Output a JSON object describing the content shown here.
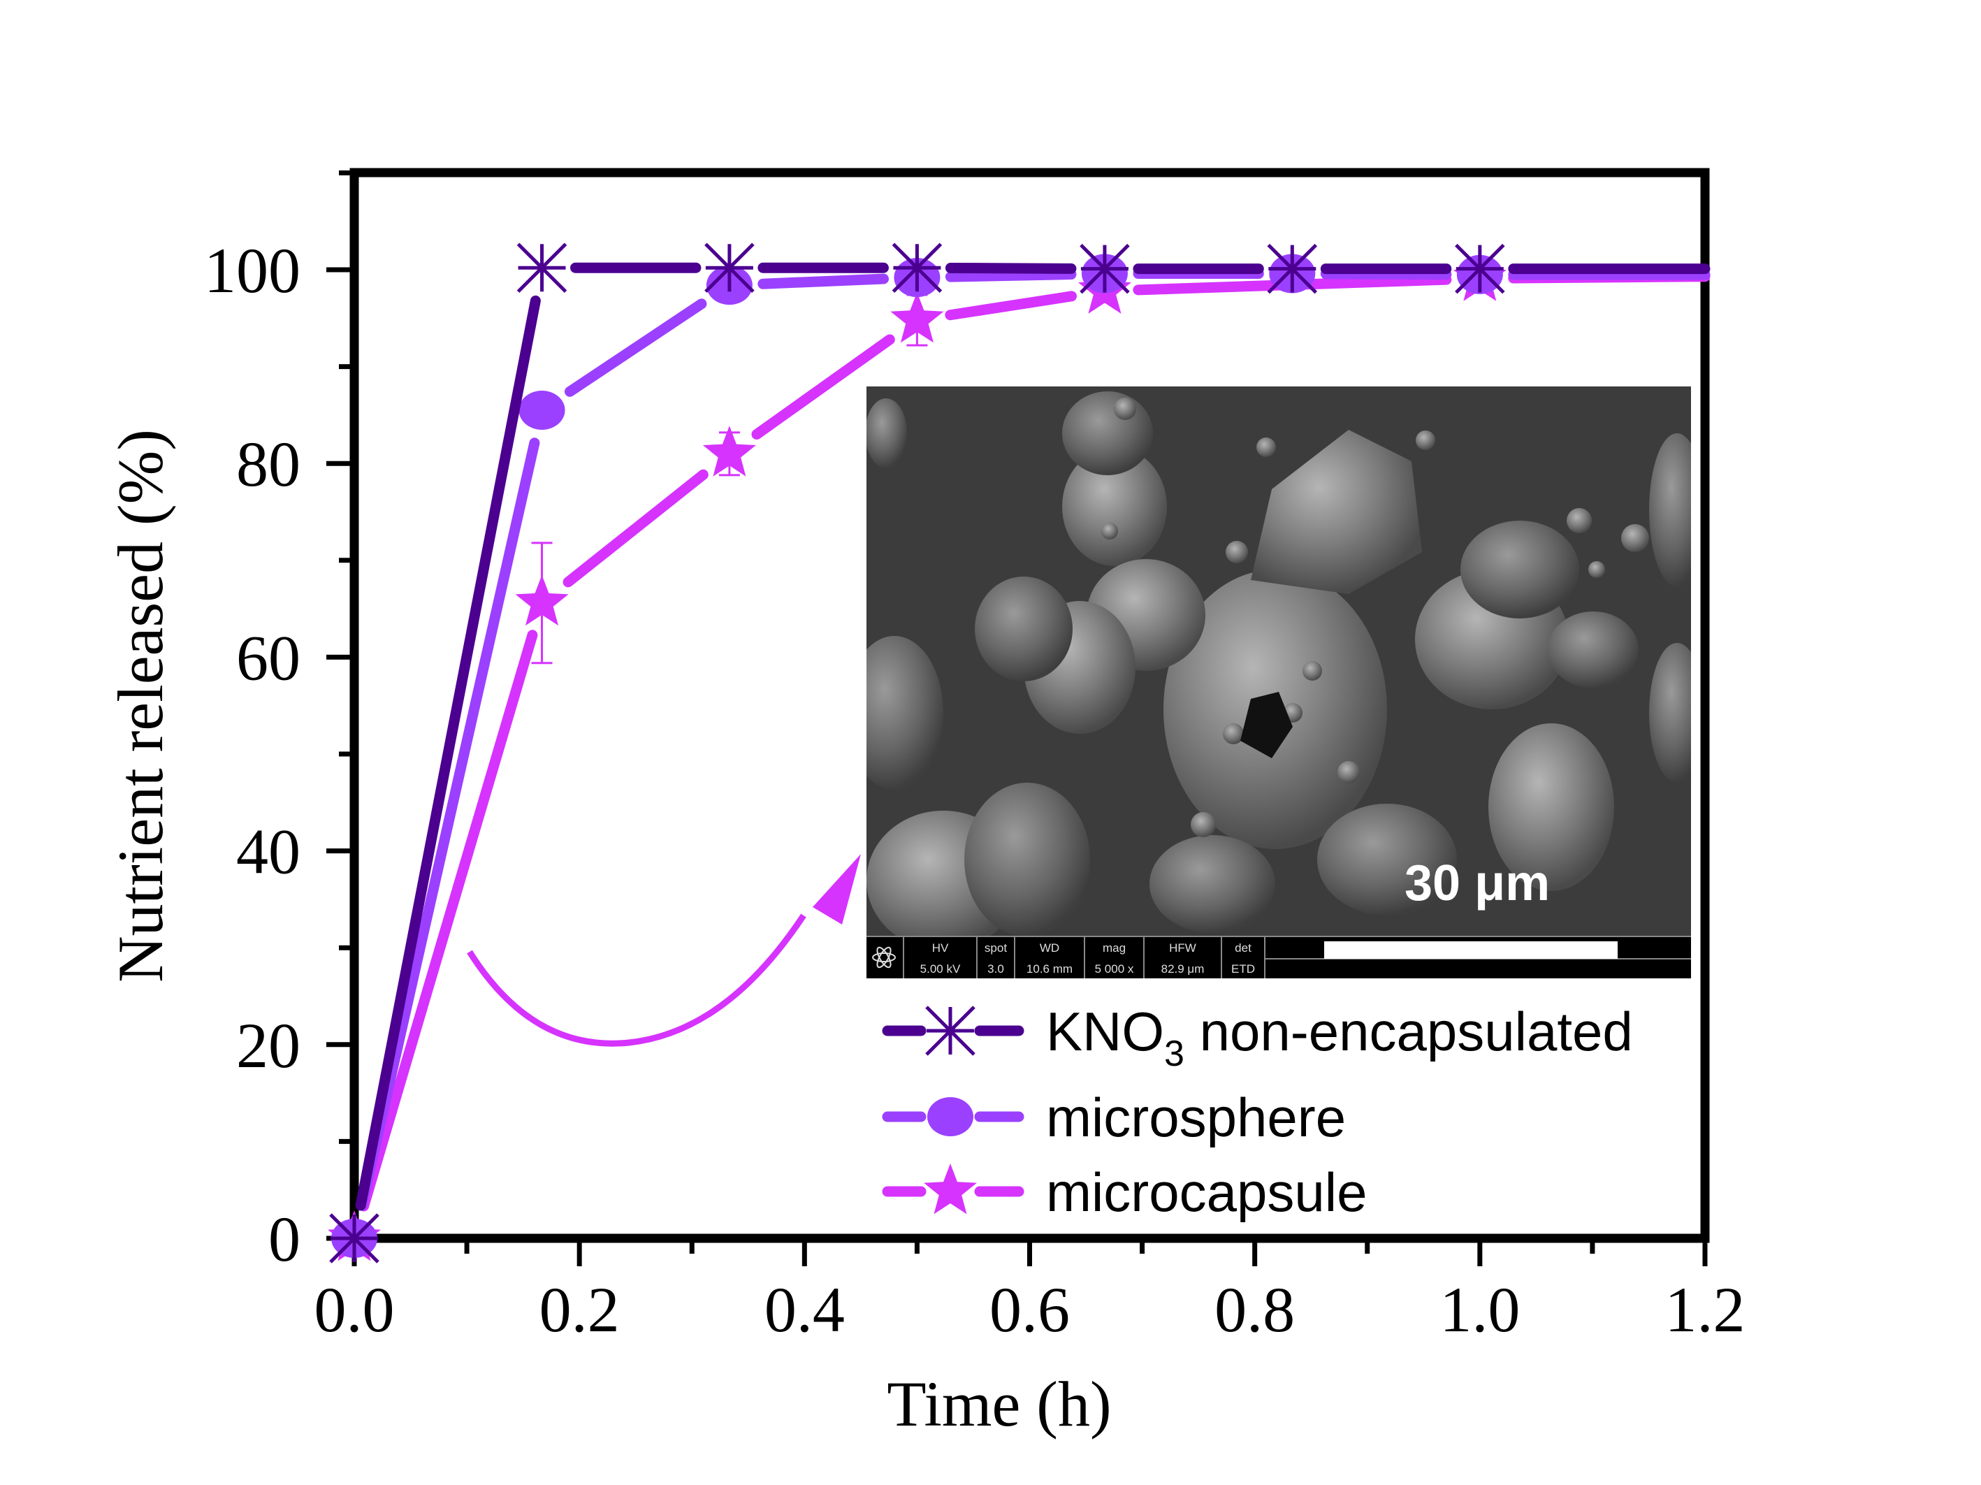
{
  "chart_data": {
    "type": "line",
    "title": "",
    "xlabel": "Time (h)",
    "ylabel": "Nutrient released (%)",
    "xlim": [
      0,
      1.2
    ],
    "ylim": [
      0,
      110
    ],
    "x_ticks": [
      "0.0",
      "0.2",
      "0.4",
      "0.6",
      "0.8",
      "1.0",
      "1.2"
    ],
    "y_ticks": [
      "0",
      "20",
      "40",
      "60",
      "80",
      "100"
    ],
    "grid": false,
    "legend_position": "lower right (inside plot)",
    "series": [
      {
        "name": "KNO3 non-encapsulated",
        "label_main": "KNO",
        "label_sub": "3",
        "label_rest": " non-encapsulated",
        "marker": "asterisk",
        "color": "#4B0090",
        "x": [
          0,
          0.1667,
          0.3333,
          0.5,
          0.6667,
          0.8333,
          1.0,
          1.2
        ],
        "y": [
          0,
          100.2,
          100.2,
          100.2,
          100.1,
          100.1,
          100.1,
          100.1
        ],
        "markers_at": [
          0,
          0.1667,
          0.3333,
          0.5,
          0.6667,
          0.8333,
          1.0
        ]
      },
      {
        "name": "microsphere",
        "label_main": "microsphere",
        "marker": "circle",
        "color": "#9B40FF",
        "x": [
          0,
          0.1667,
          0.3333,
          0.5,
          0.6667,
          0.8333,
          1.0,
          1.2
        ],
        "y": [
          0,
          85.5,
          98.4,
          99.2,
          99.6,
          99.6,
          99.5,
          99.5
        ],
        "markers_at": [
          0,
          0.1667,
          0.3333,
          0.5,
          0.6667,
          0.8333,
          1.0
        ]
      },
      {
        "name": "microcapsule",
        "label_main": "microcapsule",
        "marker": "star",
        "color": "#D633FF",
        "x": [
          0,
          0.1667,
          0.3333,
          0.5,
          0.6667,
          1.0,
          1.2
        ],
        "y": [
          0,
          65.6,
          81.0,
          94.8,
          97.8,
          99.1,
          99.3
        ],
        "error": [
          0,
          6.2,
          2.2,
          2.6,
          0.5,
          0.5,
          0
        ],
        "markers_at": [
          0,
          0.1667,
          0.3333,
          0.5,
          0.6667,
          1.0
        ]
      }
    ],
    "annotations": [
      {
        "type": "curved-arrow",
        "color": "#D633FF",
        "description": "arrow from microcapsule curve toward SEM inset"
      },
      {
        "type": "inset-image",
        "description": "SEM micrograph of microcapsules"
      }
    ]
  },
  "inset": {
    "scale_label": "30 μm",
    "meta_headers": [
      "HV",
      "spot",
      "WD",
      "mag",
      "HFW",
      "det"
    ],
    "meta_values": [
      "5.00 kV",
      "3.0",
      "10.6 mm",
      "5 000 x",
      "82.9 μm",
      "ETD"
    ]
  }
}
